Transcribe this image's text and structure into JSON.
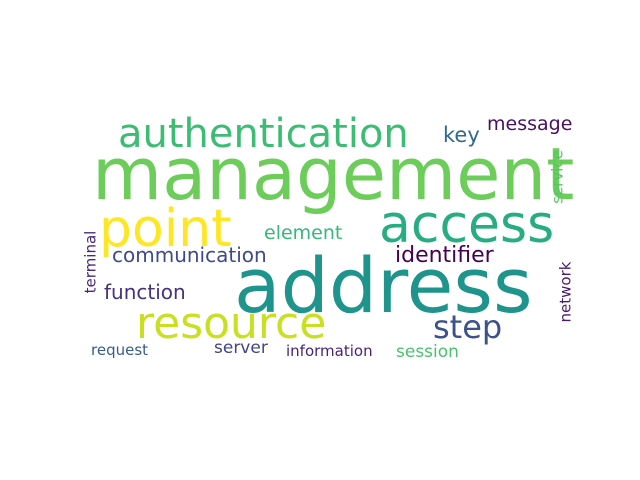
{
  "words": [
    {
      "text": "management",
      "color": "#6ccd5a"
    },
    {
      "text": "address",
      "color": "#1f948c"
    },
    {
      "text": "point",
      "color": "#fde725"
    },
    {
      "text": "access",
      "color": "#27ad81"
    },
    {
      "text": "authentication",
      "color": "#3dbc74"
    },
    {
      "text": "resource",
      "color": "#c8e020"
    },
    {
      "text": "step",
      "color": "#3b528b"
    },
    {
      "text": "identifier",
      "color": "#440154"
    },
    {
      "text": "communication",
      "color": "#3e4a89"
    },
    {
      "text": "function",
      "color": "#46327e"
    },
    {
      "text": "element",
      "color": "#35b779"
    },
    {
      "text": "key",
      "color": "#31688e"
    },
    {
      "text": "message",
      "color": "#471063"
    },
    {
      "text": "server",
      "color": "#414487"
    },
    {
      "text": "information",
      "color": "#482475"
    },
    {
      "text": "session",
      "color": "#4ac16d"
    },
    {
      "text": "request",
      "color": "#365c8d"
    },
    {
      "text": "terminal",
      "color": "#482878"
    },
    {
      "text": "network",
      "color": "#481a6c"
    },
    {
      "text": "service",
      "color": "#54c568"
    }
  ]
}
